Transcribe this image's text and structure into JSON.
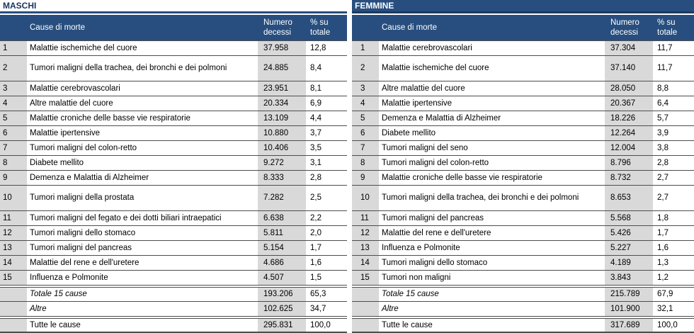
{
  "colors": {
    "header_bg": "#274E7E",
    "title_text_left": "#17365D",
    "title_text_right": "#FFFFFF",
    "shaded_cell_bg": "#D9D9D9",
    "row_border": "#4D4D4D",
    "header_text": "#FFFFFF"
  },
  "columns": {
    "cause": "Cause di morte",
    "deaths": "Numero decessi",
    "percent": "% su totale"
  },
  "tables": [
    {
      "title": "MASCHI",
      "rows": [
        {
          "rank": "1",
          "cause": "Malattie ischemiche del cuore",
          "deaths": "37.958",
          "percent": "12,8",
          "tall": false
        },
        {
          "rank": "2",
          "cause": "Tumori maligni della trachea, dei bronchi e dei polmoni",
          "deaths": "24.885",
          "percent": "8,4",
          "tall": true
        },
        {
          "rank": "3",
          "cause": "Malattie cerebrovascolari",
          "deaths": "23.951",
          "percent": "8,1",
          "tall": false
        },
        {
          "rank": "4",
          "cause": "Altre malattie del cuore",
          "deaths": "20.334",
          "percent": "6,9",
          "tall": false
        },
        {
          "rank": "5",
          "cause": "Malattie croniche delle basse vie respiratorie",
          "deaths": "13.109",
          "percent": "4,4",
          "tall": false
        },
        {
          "rank": "6",
          "cause": "Malattie ipertensive",
          "deaths": "10.880",
          "percent": "3,7",
          "tall": false
        },
        {
          "rank": "7",
          "cause": "Tumori maligni del colon-retto",
          "deaths": "10.406",
          "percent": "3,5",
          "tall": false
        },
        {
          "rank": "8",
          "cause": "Diabete mellito",
          "deaths": "9.272",
          "percent": "3,1",
          "tall": false
        },
        {
          "rank": "9",
          "cause": "Demenza e Malattia di Alzheimer",
          "deaths": "8.333",
          "percent": "2,8",
          "tall": false
        },
        {
          "rank": "10",
          "cause": "Tumori maligni della prostata",
          "deaths": "7.282",
          "percent": "2,5",
          "tall": true
        },
        {
          "rank": "11",
          "cause": "Tumori maligni del fegato e dei dotti biliari intraepatici",
          "deaths": "6.638",
          "percent": "2,2",
          "tall": false
        },
        {
          "rank": "12",
          "cause": "Tumori maligni dello stomaco",
          "deaths": "5.811",
          "percent": "2,0",
          "tall": false
        },
        {
          "rank": "13",
          "cause": "Tumori maligni del pancreas",
          "deaths": "5.154",
          "percent": "1,7",
          "tall": false
        },
        {
          "rank": "14",
          "cause": "Malattie del rene e dell'uretere",
          "deaths": "4.686",
          "percent": "1,6",
          "tall": false
        },
        {
          "rank": "15",
          "cause": "Influenza e Polmonite",
          "deaths": "4.507",
          "percent": "1,5",
          "tall": false
        }
      ],
      "totals": [
        {
          "label": "Totale 15 cause",
          "deaths": "193.206",
          "percent": "65,3",
          "italic": true
        },
        {
          "label": "Altre",
          "deaths": "102.625",
          "percent": "34,7",
          "italic": true
        },
        {
          "label": "Tutte le cause",
          "deaths": "295.831",
          "percent": "100,0",
          "italic": false
        }
      ]
    },
    {
      "title": "FEMMINE",
      "rows": [
        {
          "rank": "1",
          "cause": "Malattie cerebrovascolari",
          "deaths": "37.304",
          "percent": "11,7",
          "tall": false
        },
        {
          "rank": "2",
          "cause": "Malattie ischemiche del cuore",
          "deaths": "37.140",
          "percent": "11,7",
          "tall": true
        },
        {
          "rank": "3",
          "cause": "Altre malattie del cuore",
          "deaths": "28.050",
          "percent": "8,8",
          "tall": false
        },
        {
          "rank": "4",
          "cause": "Malattie ipertensive",
          "deaths": "20.367",
          "percent": "6,4",
          "tall": false
        },
        {
          "rank": "5",
          "cause": "Demenza e Malattia di Alzheimer",
          "deaths": "18.226",
          "percent": "5,7",
          "tall": false
        },
        {
          "rank": "6",
          "cause": "Diabete mellito",
          "deaths": "12.264",
          "percent": "3,9",
          "tall": false
        },
        {
          "rank": "7",
          "cause": "Tumori maligni del seno",
          "deaths": "12.004",
          "percent": "3,8",
          "tall": false
        },
        {
          "rank": "8",
          "cause": "Tumori maligni del colon-retto",
          "deaths": "8.796",
          "percent": "2,8",
          "tall": false
        },
        {
          "rank": "9",
          "cause": "Malattie croniche delle basse vie respiratorie",
          "deaths": "8.732",
          "percent": "2,7",
          "tall": false
        },
        {
          "rank": "10",
          "cause": "Tumori maligni della trachea, dei bronchi e dei polmoni",
          "deaths": "8.653",
          "percent": "2,7",
          "tall": true
        },
        {
          "rank": "11",
          "cause": "Tumori maligni del pancreas",
          "deaths": "5.568",
          "percent": "1,8",
          "tall": false
        },
        {
          "rank": "12",
          "cause": "Malattie del rene e dell'uretere",
          "deaths": "5.426",
          "percent": "1,7",
          "tall": false
        },
        {
          "rank": "13",
          "cause": "Influenza e Polmonite",
          "deaths": "5.227",
          "percent": "1,6",
          "tall": false
        },
        {
          "rank": "14",
          "cause": "Tumori maligni dello stomaco",
          "deaths": "4.189",
          "percent": "1,3",
          "tall": false
        },
        {
          "rank": "15",
          "cause": "Tumori non maligni",
          "deaths": "3.843",
          "percent": "1,2",
          "tall": false
        }
      ],
      "totals": [
        {
          "label": "Totale 15 cause",
          "deaths": "215.789",
          "percent": "67,9",
          "italic": true
        },
        {
          "label": "Altre",
          "deaths": "101.900",
          "percent": "32,1",
          "italic": true
        },
        {
          "label": "Tutte le cause",
          "deaths": "317.689",
          "percent": "100,0",
          "italic": false
        }
      ]
    }
  ]
}
